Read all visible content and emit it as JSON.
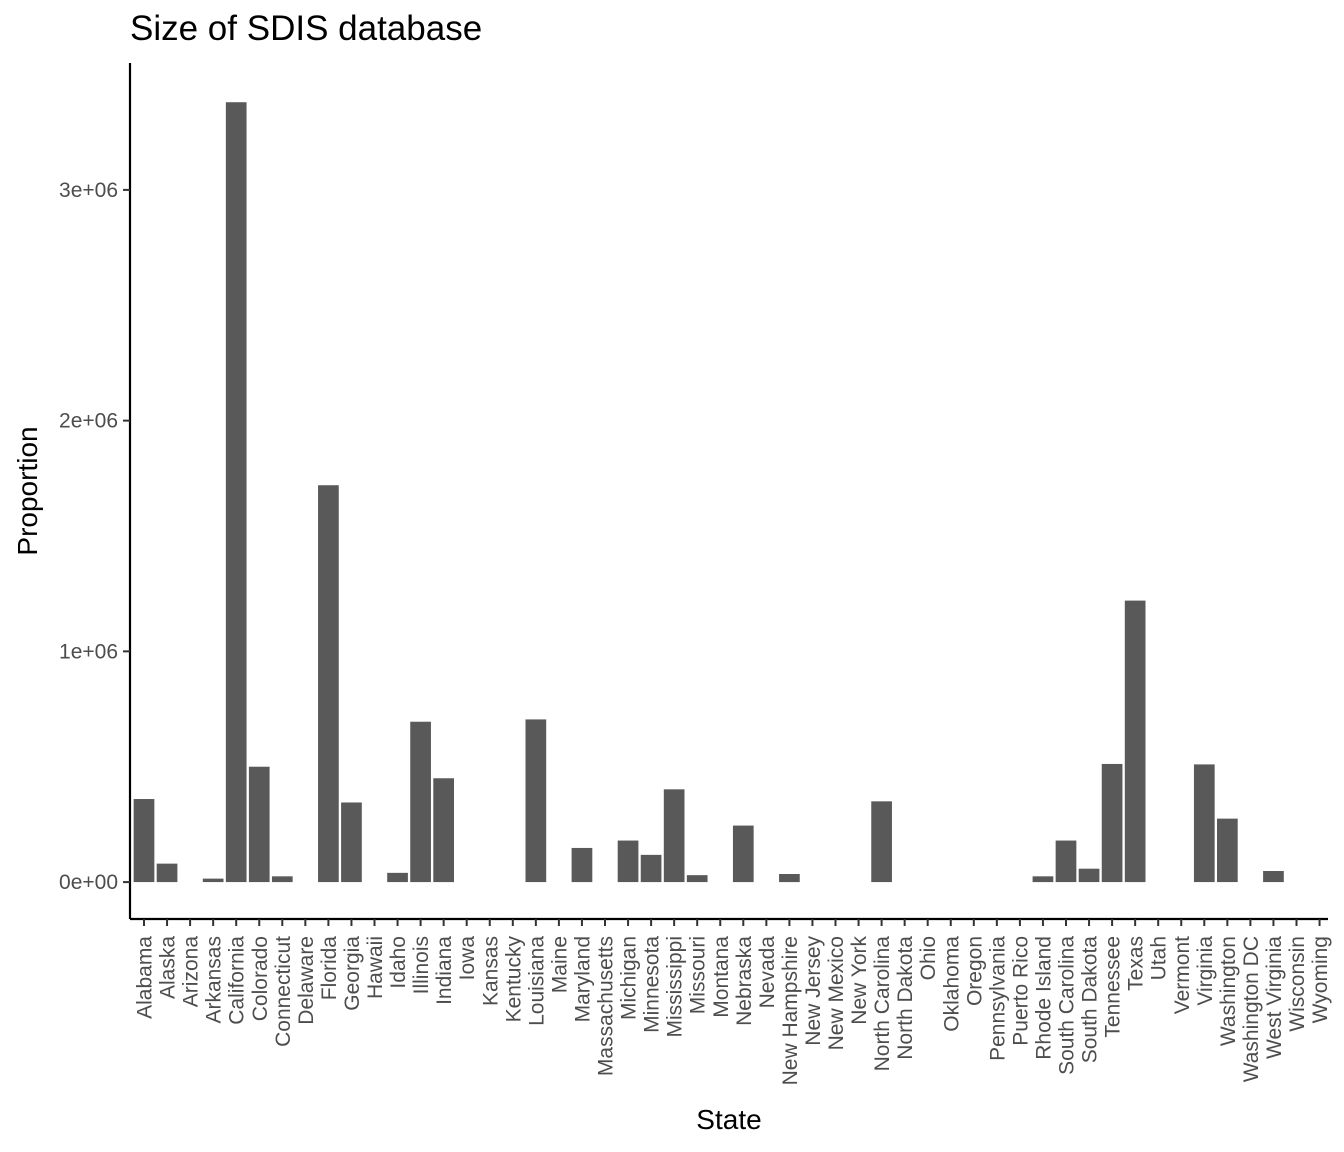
{
  "chart_data": {
    "type": "bar",
    "title": "Size of SDIS database",
    "xlabel": "State",
    "ylabel": "Proportion",
    "ylim": [
      -160000,
      3550000
    ],
    "yticks": [
      0,
      1000000,
      2000000,
      3000000
    ],
    "ytick_labels": [
      "0e+00",
      "1e+06",
      "2e+06",
      "3e+06"
    ],
    "bar_color": "#595959",
    "grid": false,
    "categories": [
      "Alabama",
      "Alaska",
      "Arizona",
      "Arkansas",
      "California",
      "Colorado",
      "Connecticut",
      "Delaware",
      "Florida",
      "Georgia",
      "Hawaii",
      "Idaho",
      "Illinois",
      "Indiana",
      "Iowa",
      "Kansas",
      "Kentucky",
      "Louisiana",
      "Maine",
      "Maryland",
      "Massachusetts",
      "Michigan",
      "Minnesota",
      "Mississippi",
      "Missouri",
      "Montana",
      "Nebraska",
      "Nevada",
      "New Hampshire",
      "New Jersey",
      "New Mexico",
      "New York",
      "North Carolina",
      "North Dakota",
      "Ohio",
      "Oklahoma",
      "Oregon",
      "Pennsylvania",
      "Puerto Rico",
      "Rhode Island",
      "South Carolina",
      "South Dakota",
      "Tennessee",
      "Texas",
      "Utah",
      "Vermont",
      "Virginia",
      "Washington",
      "Washington DC",
      "West Virginia",
      "Wisconsin",
      "Wyoming"
    ],
    "values": [
      360000,
      80000,
      null,
      15000,
      3380000,
      500000,
      25000,
      null,
      1720000,
      345000,
      null,
      40000,
      695000,
      450000,
      null,
      null,
      null,
      705000,
      null,
      148000,
      null,
      180000,
      118000,
      402000,
      30000,
      null,
      245000,
      null,
      35000,
      null,
      null,
      null,
      350000,
      null,
      null,
      null,
      null,
      null,
      null,
      25000,
      180000,
      58000,
      512000,
      1220000,
      null,
      null,
      510000,
      275000,
      null,
      48000,
      null,
      null
    ]
  }
}
